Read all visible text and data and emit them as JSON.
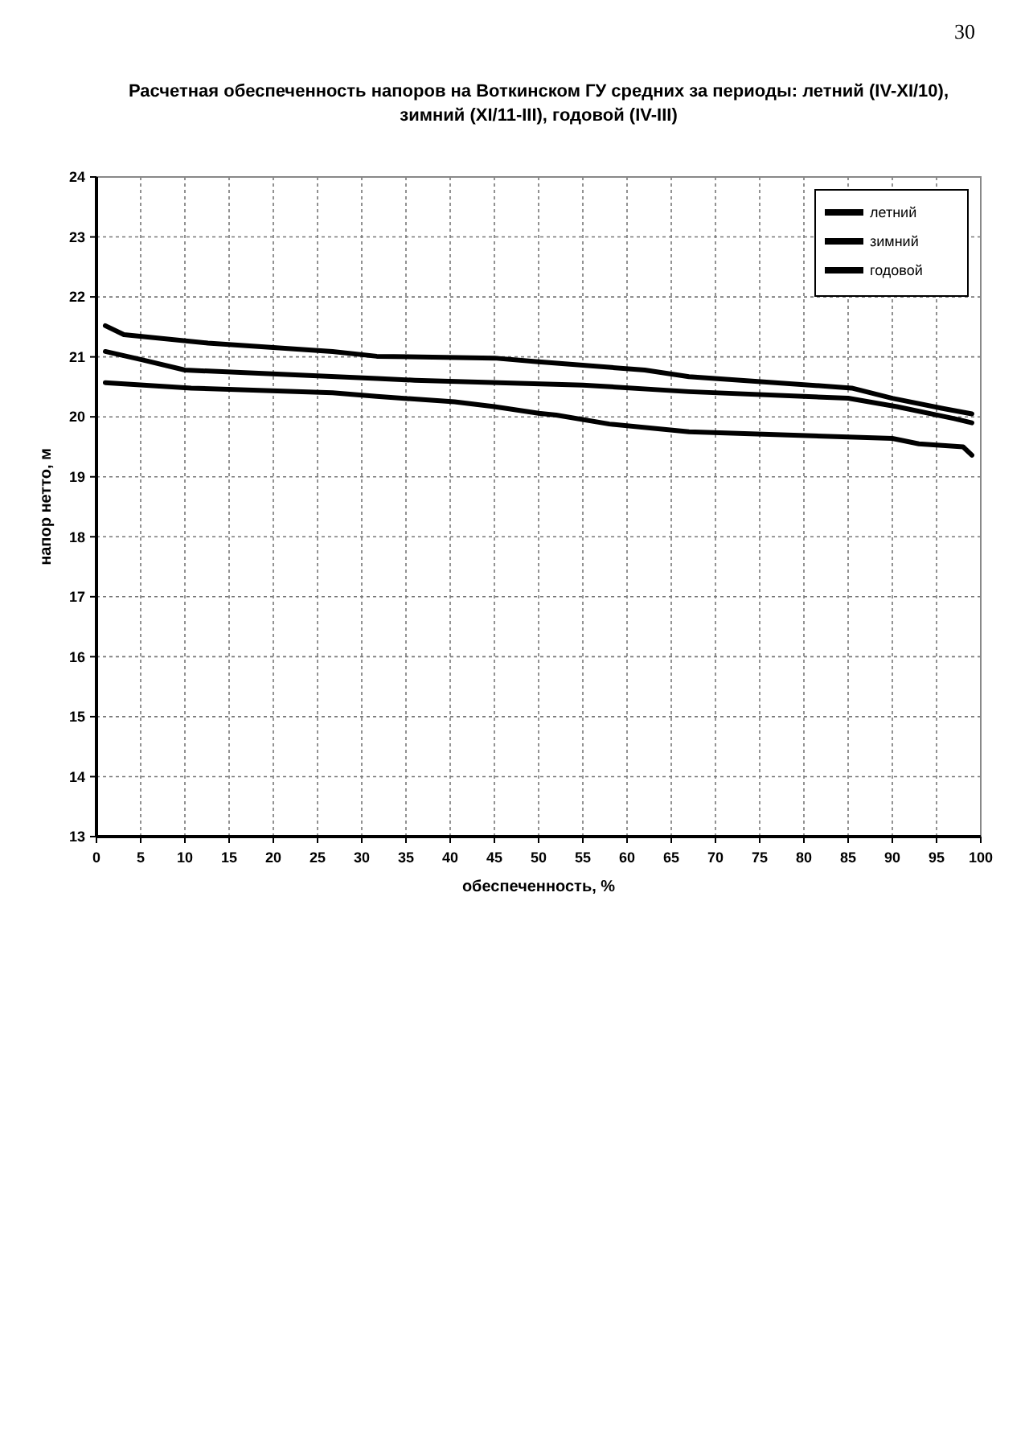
{
  "chart_data": {
    "type": "line",
    "title": "Расчетная обеспеченность напоров на Воткинском ГУ средних за периоды: летний (IV-XI/10),\nзимний (XI/11-III), годовой (IV-III)",
    "xlabel": "обеспеченность, %",
    "ylabel": "напор нетто, м",
    "annotations": [
      "30"
    ],
    "series": [
      {
        "name": "летний",
        "color": "#000000",
        "x": [
          1,
          3.1,
          12.6,
          26.7,
          31.7,
          45,
          49.7,
          62,
          67,
          85.4,
          90,
          95.7,
          99
        ],
        "values": [
          21.52,
          21.37,
          21.23,
          21.09,
          21.01,
          20.98,
          20.92,
          20.78,
          20.67,
          20.48,
          20.31,
          20.14,
          20.05
        ]
      },
      {
        "name": "зимний",
        "color": "#000000",
        "x": [
          1,
          10.7,
          26.7,
          31.7,
          40.5,
          45,
          50,
          52,
          58,
          67,
          90,
          93,
          98,
          99
        ],
        "values": [
          20.57,
          20.48,
          20.4,
          20.34,
          20.25,
          20.17,
          20.06,
          20.03,
          19.88,
          19.75,
          19.64,
          19.55,
          19.5,
          19.36
        ]
      },
      {
        "name": "годовой",
        "color": "#000000",
        "x": [
          1,
          5.2,
          10,
          31.7,
          36,
          55,
          67,
          85,
          90.5,
          97,
          99
        ],
        "values": [
          21.09,
          20.95,
          20.78,
          20.64,
          20.61,
          20.53,
          20.42,
          20.31,
          20.17,
          19.97,
          19.9
        ]
      }
    ],
    "xlim": [
      0,
      100
    ],
    "xticks": [
      0,
      5,
      10,
      15,
      20,
      25,
      30,
      35,
      40,
      45,
      50,
      55,
      60,
      65,
      70,
      75,
      80,
      85,
      90,
      95,
      100
    ],
    "ylim": [
      13,
      24
    ],
    "yticks": [
      13,
      14,
      15,
      16,
      17,
      18,
      19,
      20,
      21,
      22,
      23,
      24
    ],
    "grid": true,
    "legend": "top right",
    "marker": "none",
    "line_style": "solid"
  }
}
